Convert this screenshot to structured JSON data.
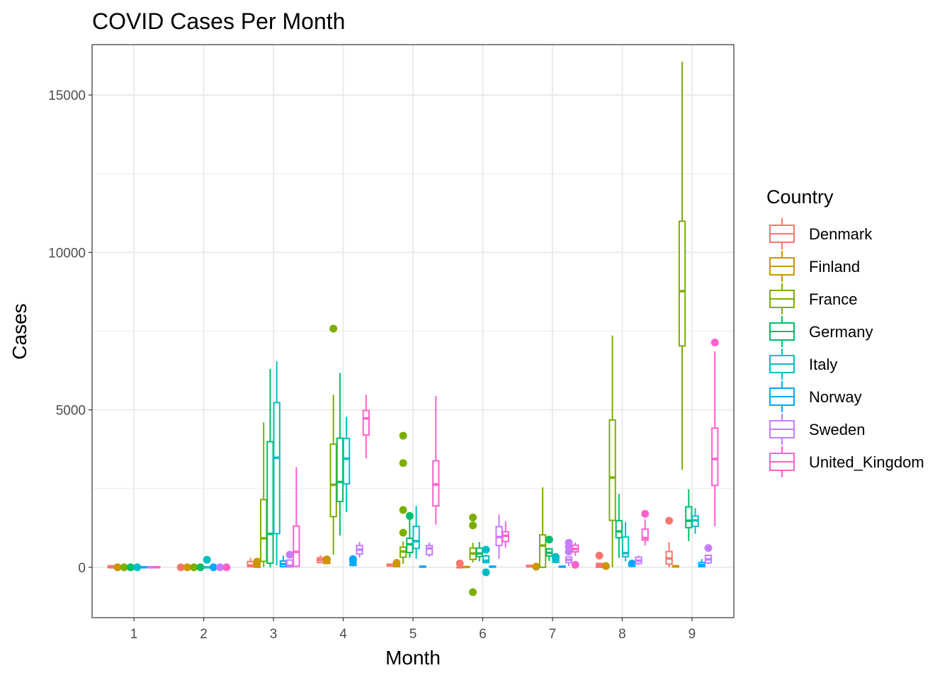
{
  "chart_data": {
    "type": "boxplot",
    "title": "COVID Cases Per Month",
    "xlabel": "Month",
    "ylabel": "Cases",
    "categories": [
      "1",
      "2",
      "3",
      "4",
      "5",
      "6",
      "7",
      "8",
      "9"
    ],
    "ylim": [
      -1600,
      16600
    ],
    "yticks": [
      0,
      5000,
      10000,
      15000
    ],
    "ytick_labels": [
      "0",
      "5000",
      "10000",
      "15000"
    ],
    "grid": true,
    "legend": {
      "title": "Country",
      "position": "right"
    },
    "series": [
      {
        "name": "Denmark",
        "color": "#F8766D",
        "boxes": [
          {
            "month": 1,
            "min": 0,
            "q1": 0,
            "median": 0,
            "q3": 50,
            "max": 50,
            "outliers": []
          },
          {
            "month": 2,
            "min": 0,
            "q1": 0,
            "median": 0,
            "q3": 0,
            "max": 0,
            "outliers": [
              0
            ]
          },
          {
            "month": 3,
            "min": 0,
            "q1": 20,
            "median": 60,
            "q3": 180,
            "max": 300,
            "outliers": []
          },
          {
            "month": 4,
            "min": 150,
            "q1": 150,
            "median": 230,
            "q3": 300,
            "max": 380,
            "outliers": []
          },
          {
            "month": 5,
            "min": 30,
            "q1": 40,
            "median": 60,
            "q3": 100,
            "max": 110,
            "outliers": []
          },
          {
            "month": 6,
            "min": 0,
            "q1": 0,
            "median": 0,
            "q3": 0,
            "max": 0,
            "outliers": [
              120
            ]
          },
          {
            "month": 7,
            "min": 0,
            "q1": 20,
            "median": 30,
            "q3": 60,
            "max": 70,
            "outliers": []
          },
          {
            "month": 8,
            "min": 0,
            "q1": 0,
            "median": 60,
            "q3": 120,
            "max": 150,
            "outliers": [
              370
            ]
          },
          {
            "month": 9,
            "min": 0,
            "q1": 100,
            "median": 280,
            "q3": 500,
            "max": 800,
            "outliers": [
              1480
            ]
          }
        ]
      },
      {
        "name": "Finland",
        "color": "#CD9600",
        "boxes": [
          {
            "month": 1,
            "min": 0,
            "q1": 0,
            "median": 0,
            "q3": 0,
            "max": 0,
            "outliers": [
              0
            ]
          },
          {
            "month": 2,
            "min": 0,
            "q1": 0,
            "median": 0,
            "q3": 0,
            "max": 0,
            "outliers": [
              0
            ]
          },
          {
            "month": 3,
            "min": 0,
            "q1": 0,
            "median": 50,
            "q3": 120,
            "max": 150,
            "outliers": [
              180
            ]
          },
          {
            "month": 4,
            "min": 100,
            "q1": 120,
            "median": 170,
            "q3": 220,
            "max": 250,
            "outliers": [
              250
            ]
          },
          {
            "month": 5,
            "min": 0,
            "q1": 20,
            "median": 60,
            "q3": 110,
            "max": 130,
            "outliers": [
              140
            ]
          },
          {
            "month": 6,
            "min": 0,
            "q1": 0,
            "median": 10,
            "q3": 20,
            "max": 30,
            "outliers": []
          },
          {
            "month": 7,
            "min": 0,
            "q1": 0,
            "median": 10,
            "q3": 20,
            "max": 20,
            "outliers": [
              20
            ]
          },
          {
            "month": 8,
            "min": 0,
            "q1": 0,
            "median": 20,
            "q3": 40,
            "max": 50,
            "outliers": [
              40
            ]
          },
          {
            "month": 9,
            "min": 0,
            "q1": 10,
            "median": 30,
            "q3": 50,
            "max": 60,
            "outliers": []
          }
        ]
      },
      {
        "name": "France",
        "color": "#7CAE00",
        "boxes": [
          {
            "month": 1,
            "min": 0,
            "q1": 0,
            "median": 0,
            "q3": 0,
            "max": 0,
            "outliers": [
              0
            ]
          },
          {
            "month": 2,
            "min": 0,
            "q1": 0,
            "median": 0,
            "q3": 0,
            "max": 0,
            "outliers": [
              0
            ]
          },
          {
            "month": 3,
            "min": 0,
            "q1": 190,
            "median": 920,
            "q3": 2150,
            "max": 4600,
            "outliers": []
          },
          {
            "month": 4,
            "min": 400,
            "q1": 1610,
            "median": 2620,
            "q3": 3910,
            "max": 5480,
            "outliers": [
              7580
            ]
          },
          {
            "month": 5,
            "min": 110,
            "q1": 320,
            "median": 500,
            "q3": 640,
            "max": 820,
            "outliers": [
              1100,
              1820,
              3310,
              4180
            ]
          },
          {
            "month": 6,
            "min": 150,
            "q1": 250,
            "median": 440,
            "q3": 610,
            "max": 780,
            "outliers": [
              1330,
              1580,
              -790
            ]
          },
          {
            "month": 7,
            "min": 0,
            "q1": 0,
            "median": 690,
            "q3": 1030,
            "max": 2540,
            "outliers": []
          },
          {
            "month": 8,
            "min": 0,
            "q1": 1490,
            "median": 2850,
            "q3": 4680,
            "max": 7360,
            "outliers": []
          },
          {
            "month": 9,
            "min": 3100,
            "q1": 7030,
            "median": 8770,
            "q3": 10990,
            "max": 16060,
            "outliers": []
          }
        ]
      },
      {
        "name": "Germany",
        "color": "#00BE67",
        "boxes": [
          {
            "month": 1,
            "min": 0,
            "q1": 0,
            "median": 0,
            "q3": 0,
            "max": 0,
            "outliers": [
              0
            ]
          },
          {
            "month": 2,
            "min": 0,
            "q1": 0,
            "median": 0,
            "q3": 0,
            "max": 0,
            "outliers": [
              0
            ]
          },
          {
            "month": 3,
            "min": 0,
            "q1": 130,
            "median": 1060,
            "q3": 3990,
            "max": 6300,
            "outliers": []
          },
          {
            "month": 4,
            "min": 1010,
            "q1": 2090,
            "median": 2710,
            "q3": 4100,
            "max": 6170,
            "outliers": []
          },
          {
            "month": 5,
            "min": 300,
            "q1": 470,
            "median": 730,
            "q3": 920,
            "max": 1550,
            "outliers": [
              1630
            ]
          },
          {
            "month": 6,
            "min": 190,
            "q1": 340,
            "median": 440,
            "q3": 610,
            "max": 800,
            "outliers": []
          },
          {
            "month": 7,
            "min": 200,
            "q1": 360,
            "median": 460,
            "q3": 580,
            "max": 620,
            "outliers": [
              880
            ]
          },
          {
            "month": 8,
            "min": 300,
            "q1": 940,
            "median": 1140,
            "q3": 1480,
            "max": 2330,
            "outliers": []
          },
          {
            "month": 9,
            "min": 830,
            "q1": 1260,
            "median": 1480,
            "q3": 1920,
            "max": 2480,
            "outliers": []
          }
        ]
      },
      {
        "name": "Italy",
        "color": "#00BFC4",
        "boxes": [
          {
            "month": 1,
            "min": 0,
            "q1": 0,
            "median": 0,
            "q3": 0,
            "max": 0,
            "outliers": [
              0
            ]
          },
          {
            "month": 2,
            "min": 0,
            "q1": 0,
            "median": 0,
            "q3": 10,
            "max": 40,
            "outliers": [
              240
            ]
          },
          {
            "month": 3,
            "min": 60,
            "q1": 1070,
            "median": 3480,
            "q3": 5230,
            "max": 6540,
            "outliers": []
          },
          {
            "month": 4,
            "min": 1750,
            "q1": 2650,
            "median": 3450,
            "q3": 4090,
            "max": 4780,
            "outliers": []
          },
          {
            "month": 5,
            "min": 270,
            "q1": 600,
            "median": 830,
            "q3": 1300,
            "max": 1950,
            "outliers": []
          },
          {
            "month": 6,
            "min": 120,
            "q1": 150,
            "median": 210,
            "q3": 360,
            "max": 400,
            "outliers": [
              560,
              -160
            ]
          },
          {
            "month": 7,
            "min": 120,
            "q1": 160,
            "median": 220,
            "q3": 320,
            "max": 330,
            "outliers": [
              330
            ]
          },
          {
            "month": 8,
            "min": 190,
            "q1": 340,
            "median": 450,
            "q3": 960,
            "max": 1440,
            "outliers": []
          },
          {
            "month": 9,
            "min": 1060,
            "q1": 1300,
            "median": 1490,
            "q3": 1630,
            "max": 1880,
            "outliers": []
          }
        ]
      },
      {
        "name": "Norway",
        "color": "#00A9FF",
        "boxes": [
          {
            "month": 1,
            "min": 0,
            "q1": 0,
            "median": 0,
            "q3": 20,
            "max": 30,
            "outliers": []
          },
          {
            "month": 2,
            "min": 0,
            "q1": 0,
            "median": 0,
            "q3": 0,
            "max": 0,
            "outliers": [
              0
            ]
          },
          {
            "month": 3,
            "min": 0,
            "q1": 20,
            "median": 100,
            "q3": 200,
            "max": 370,
            "outliers": []
          },
          {
            "month": 4,
            "min": 30,
            "q1": 60,
            "median": 110,
            "q3": 200,
            "max": 260,
            "outliers": [
              260
            ]
          },
          {
            "month": 5,
            "min": 0,
            "q1": 10,
            "median": 20,
            "q3": 30,
            "max": 40,
            "outliers": []
          },
          {
            "month": 6,
            "min": 0,
            "q1": 10,
            "median": 20,
            "q3": 30,
            "max": 40,
            "outliers": []
          },
          {
            "month": 7,
            "min": 0,
            "q1": 10,
            "median": 20,
            "q3": 30,
            "max": 30,
            "outliers": []
          },
          {
            "month": 8,
            "min": 0,
            "q1": 30,
            "median": 60,
            "q3": 100,
            "max": 120,
            "outliers": [
              120
            ]
          },
          {
            "month": 9,
            "min": 0,
            "q1": 20,
            "median": 70,
            "q3": 150,
            "max": 260,
            "outliers": []
          }
        ]
      },
      {
        "name": "Sweden",
        "color": "#C77CFF",
        "boxes": [
          {
            "month": 1,
            "min": 0,
            "q1": 0,
            "median": 0,
            "q3": 20,
            "max": 20,
            "outliers": []
          },
          {
            "month": 2,
            "min": 0,
            "q1": 0,
            "median": 0,
            "q3": 0,
            "max": 0,
            "outliers": [
              0
            ]
          },
          {
            "month": 3,
            "min": 0,
            "q1": 10,
            "median": 50,
            "q3": 230,
            "max": 240,
            "outliers": [
              400
            ]
          },
          {
            "month": 4,
            "min": 310,
            "q1": 420,
            "median": 560,
            "q3": 690,
            "max": 810,
            "outliers": []
          },
          {
            "month": 5,
            "min": 330,
            "q1": 400,
            "median": 600,
            "q3": 690,
            "max": 790,
            "outliers": []
          },
          {
            "month": 6,
            "min": 270,
            "q1": 690,
            "median": 960,
            "q3": 1290,
            "max": 1680,
            "outliers": []
          },
          {
            "month": 7,
            "min": 40,
            "q1": 150,
            "median": 240,
            "q3": 330,
            "max": 330,
            "outliers": [
              500,
              640,
              780
            ]
          },
          {
            "month": 8,
            "min": 80,
            "q1": 120,
            "median": 210,
            "q3": 320,
            "max": 370,
            "outliers": []
          },
          {
            "month": 9,
            "min": 100,
            "q1": 140,
            "median": 250,
            "q3": 380,
            "max": 380,
            "outliers": [
              610
            ]
          }
        ]
      },
      {
        "name": "United_Kingdom",
        "color": "#FF61CC",
        "boxes": [
          {
            "month": 1,
            "min": 0,
            "q1": 0,
            "median": 0,
            "q3": 20,
            "max": 20,
            "outliers": []
          },
          {
            "month": 2,
            "min": 0,
            "q1": 0,
            "median": 0,
            "q3": 0,
            "max": 0,
            "outliers": [
              0
            ]
          },
          {
            "month": 3,
            "min": 0,
            "q1": 30,
            "median": 490,
            "q3": 1310,
            "max": 3180,
            "outliers": []
          },
          {
            "month": 4,
            "min": 3460,
            "q1": 4200,
            "median": 4730,
            "q3": 4980,
            "max": 5480,
            "outliers": []
          },
          {
            "month": 5,
            "min": 1350,
            "q1": 1950,
            "median": 2630,
            "q3": 3380,
            "max": 5440,
            "outliers": []
          },
          {
            "month": 6,
            "min": 620,
            "q1": 820,
            "median": 1000,
            "q3": 1130,
            "max": 1460,
            "outliers": []
          },
          {
            "month": 7,
            "min": 360,
            "q1": 490,
            "median": 580,
            "q3": 700,
            "max": 790,
            "outliers": [
              80
            ]
          },
          {
            "month": 8,
            "min": 690,
            "q1": 860,
            "median": 930,
            "q3": 1210,
            "max": 1520,
            "outliers": [
              1700
            ]
          },
          {
            "month": 9,
            "min": 1300,
            "q1": 2600,
            "median": 3440,
            "q3": 4420,
            "max": 6860,
            "outliers": [
              7140
            ]
          }
        ]
      }
    ]
  }
}
